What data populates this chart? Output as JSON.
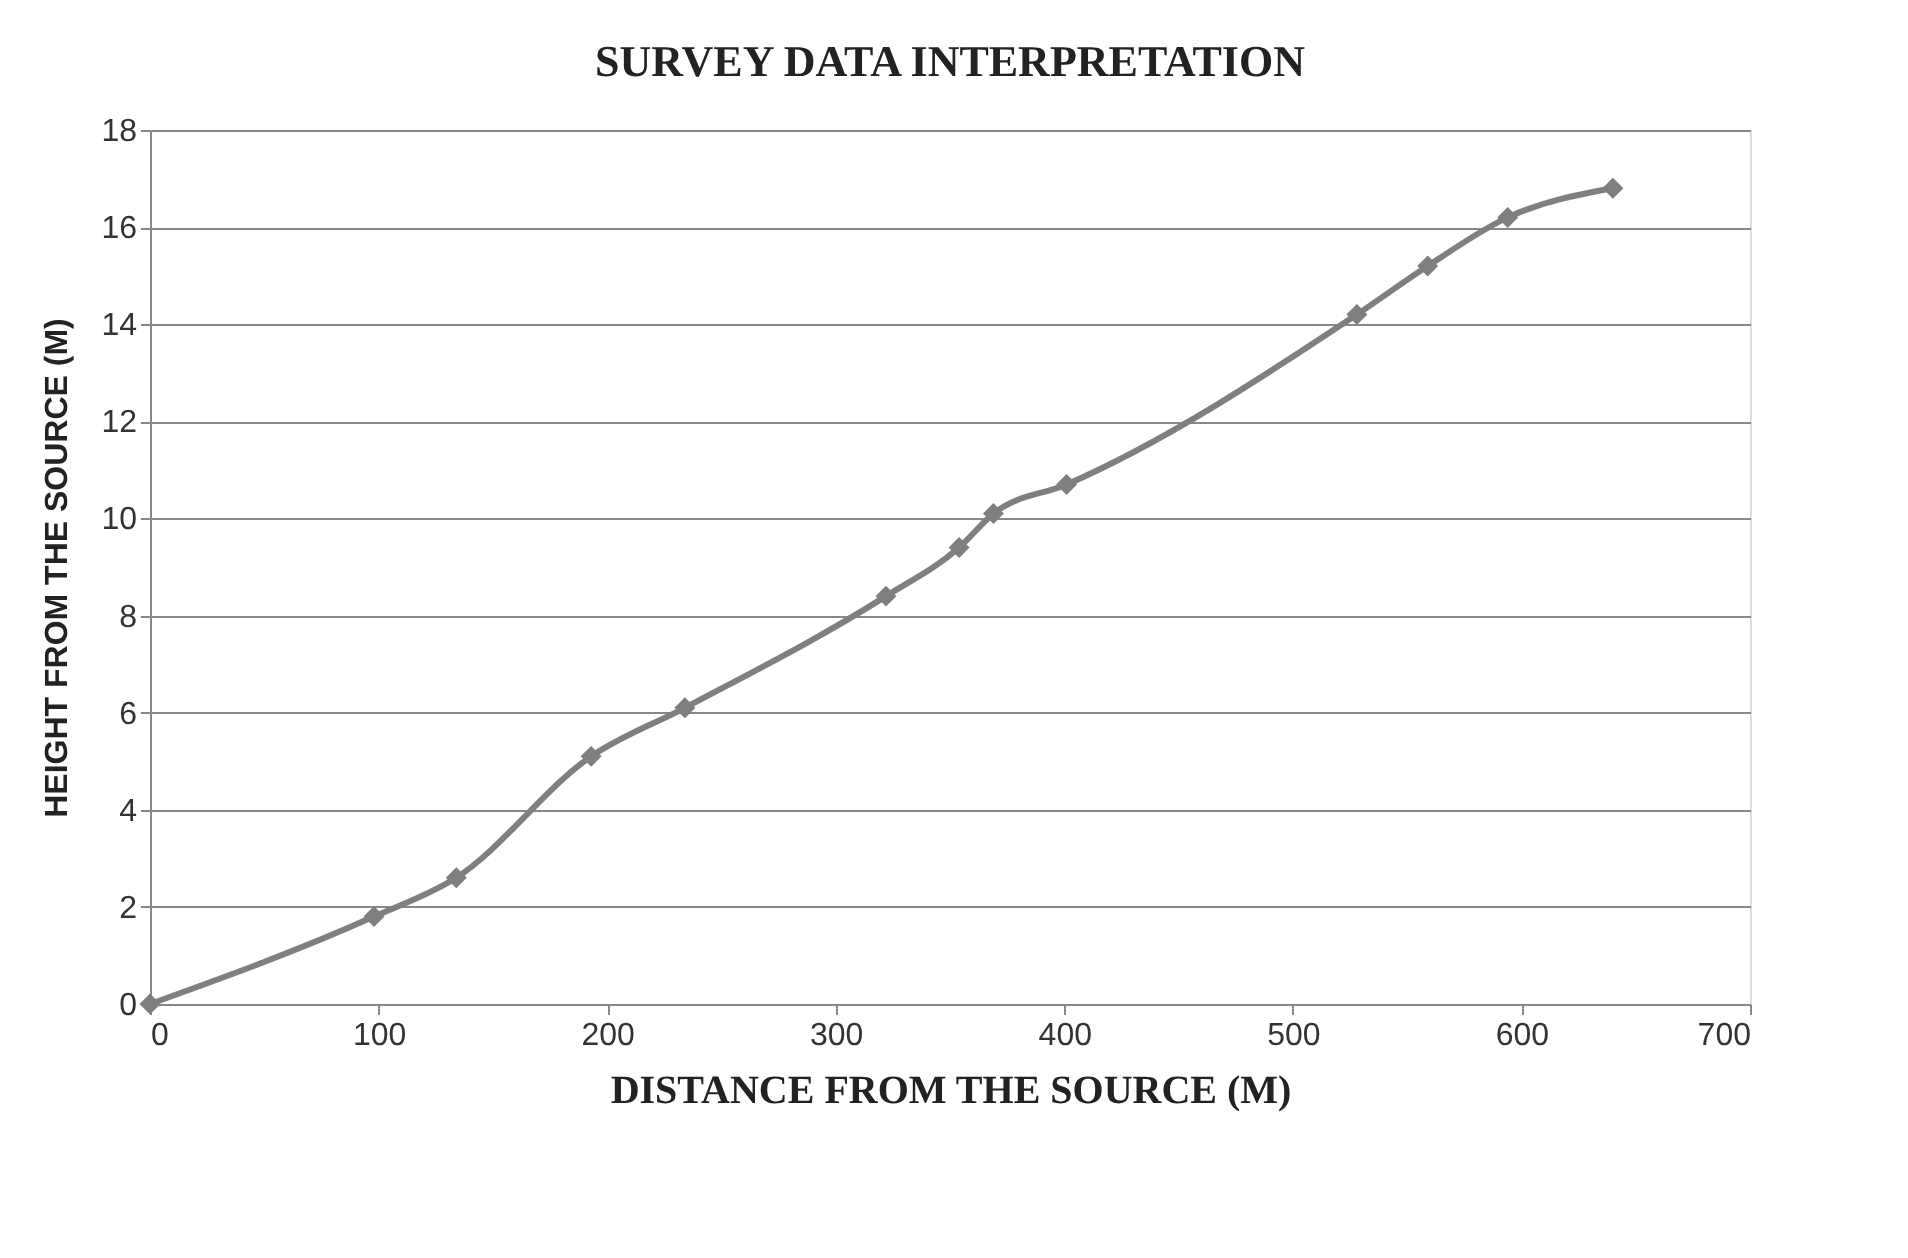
{
  "chart_data": {
    "type": "line",
    "title": "SURVEY DATA INTERPRETATION",
    "xlabel": "DISTANCE FROM THE SOURCE (M)",
    "ylabel": "HEIGHT FROM THE SOURCE (M)",
    "x": [
      0,
      98,
      134,
      193,
      234,
      322,
      354,
      369,
      401,
      528,
      559,
      594,
      640
    ],
    "series": [
      {
        "color": "#7f7f7f",
        "values": [
          0,
          1.8,
          2.6,
          5.1,
          6.1,
          8.4,
          9.4,
          10.1,
          10.7,
          14.2,
          15.2,
          16.2,
          16.8
        ]
      }
    ],
    "xlim": [
      0,
      700
    ],
    "xticks": [
      0,
      100,
      200,
      300,
      400,
      500,
      600,
      700
    ],
    "ylim": [
      0,
      18
    ],
    "yticks": [
      0,
      2,
      4,
      6,
      8,
      10,
      12,
      14,
      16,
      18
    ],
    "grid": "y",
    "marker": "diamond",
    "line_style": "solid"
  }
}
